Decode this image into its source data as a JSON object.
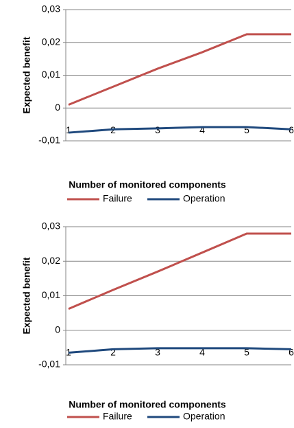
{
  "chart_data": [
    {
      "type": "line",
      "x": [
        1,
        2,
        3,
        4,
        5,
        6
      ],
      "xlim": [
        1,
        6
      ],
      "xlabel": "Number of monitored components",
      "ylabel": "Expected benefit",
      "ylim": [
        -0.01,
        0.03
      ],
      "yticks": [
        {
          "value": -0.01,
          "label": "-0,01"
        },
        0,
        {
          "value": 0.01,
          "label": "0,01"
        },
        {
          "value": 0.02,
          "label": "0,02"
        },
        {
          "value": 0.03,
          "label": "0,03"
        }
      ],
      "grid": true,
      "legend": "bottom",
      "series": [
        {
          "name": "Failure",
          "color": "#c0504d",
          "values": [
            0.001,
            0.0065,
            0.012,
            0.017,
            0.0225,
            0.0225
          ]
        },
        {
          "name": "Operation",
          "color": "#1f497d",
          "values": [
            -0.0075,
            -0.0065,
            -0.0062,
            -0.0058,
            -0.0058,
            -0.0065
          ]
        }
      ]
    },
    {
      "type": "line",
      "x": [
        1,
        2,
        3,
        4,
        5,
        6
      ],
      "xlim": [
        1,
        6
      ],
      "xlabel": "Number of monitored components",
      "ylabel": "Expected benefit",
      "ylim": [
        -0.01,
        0.03
      ],
      "yticks": [
        {
          "value": -0.01,
          "label": "-0,01"
        },
        0,
        {
          "value": 0.01,
          "label": "0,01"
        },
        {
          "value": 0.02,
          "label": "0,02"
        },
        {
          "value": 0.03,
          "label": "0,03"
        }
      ],
      "grid": true,
      "legend": "bottom",
      "series": [
        {
          "name": "Failure",
          "color": "#c0504d",
          "values": [
            0.0062,
            0.0117,
            0.017,
            0.0225,
            0.028,
            0.028
          ]
        },
        {
          "name": "Operation",
          "color": "#1f497d",
          "values": [
            -0.0065,
            -0.0055,
            -0.0052,
            -0.0052,
            -0.0052,
            -0.0055
          ]
        }
      ]
    }
  ]
}
